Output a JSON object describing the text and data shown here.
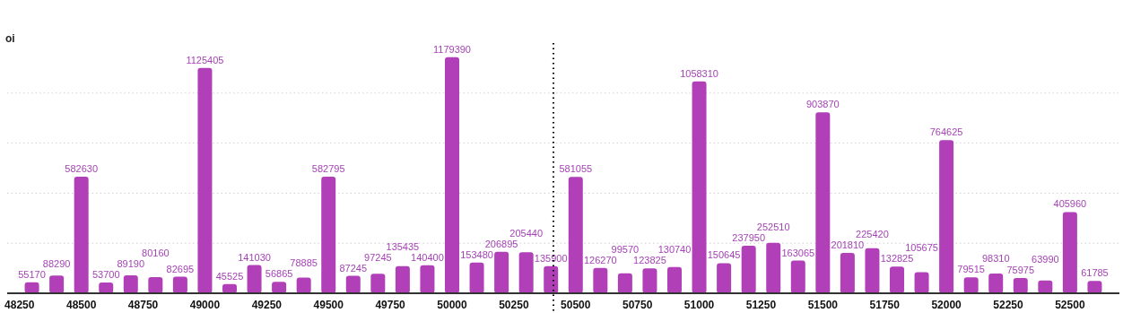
{
  "chart_data": {
    "type": "bar",
    "title": "oi",
    "x": [
      48300,
      48400,
      48500,
      48600,
      48700,
      48800,
      48900,
      49000,
      49100,
      49200,
      49300,
      49400,
      49500,
      49600,
      49700,
      49800,
      49900,
      50000,
      50100,
      50200,
      50300,
      50400,
      50500,
      50600,
      50700,
      50800,
      50900,
      51000,
      51100,
      51200,
      51300,
      51400,
      51500,
      51600,
      51700,
      51800,
      51900,
      52000,
      52100,
      52200,
      52300,
      52400,
      52500,
      52600
    ],
    "values": [
      55170,
      88290,
      582630,
      53700,
      89190,
      80160,
      82695,
      1125405,
      45525,
      141030,
      56865,
      78885,
      582795,
      87245,
      97245,
      135435,
      140400,
      1179390,
      153480,
      206895,
      205440,
      135900,
      581055,
      126270,
      99570,
      123825,
      130740,
      1058310,
      150645,
      237950,
      252510,
      163065,
      903870,
      201810,
      225420,
      132825,
      105675,
      764625,
      79515,
      98310,
      75975,
      63990,
      405960,
      61785
    ],
    "color": "#b03fb8",
    "data_labels": true,
    "xlim": [
      48200,
      52700
    ],
    "xticks": [
      48250,
      48500,
      48750,
      49000,
      49250,
      49500,
      49750,
      50000,
      50250,
      50500,
      50750,
      51000,
      51250,
      51500,
      51750,
      52000,
      52250,
      52500
    ],
    "ylim": [
      0,
      1250000
    ],
    "yticks": [
      {
        "value": 250000,
        "label": null
      },
      {
        "value": 500000,
        "label": null
      },
      {
        "value": 750000,
        "label": null
      },
      {
        "value": 1000000,
        "label": null
      }
    ],
    "tick_labels": "x",
    "grid": "y",
    "ref_lines": [
      {
        "axis": "x",
        "value": 50410,
        "label": null,
        "color": "#000000",
        "line_style": "dotted"
      }
    ]
  }
}
